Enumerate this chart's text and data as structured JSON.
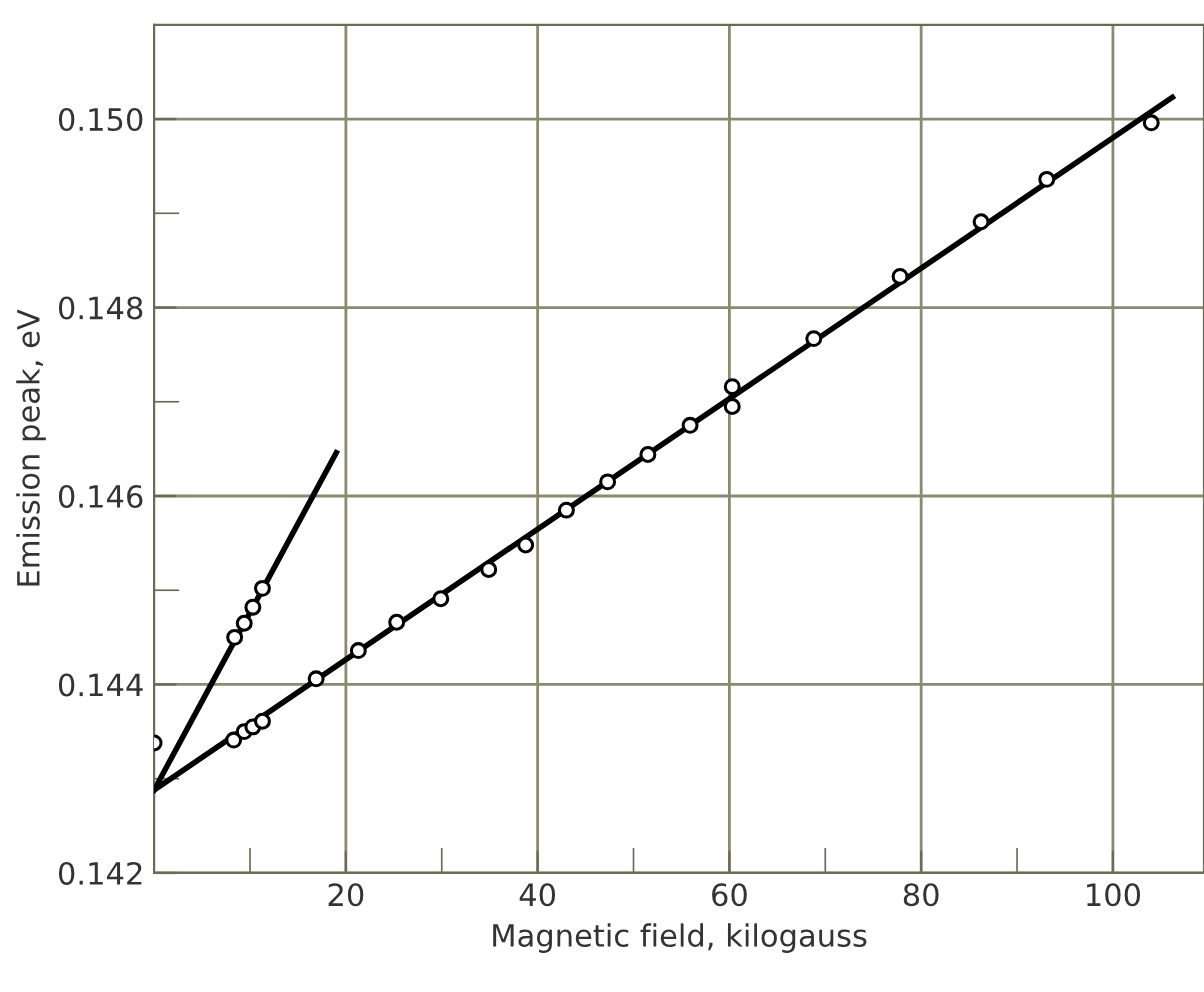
{
  "chart_data": {
    "type": "scatter",
    "xlabel": "Magnetic field, kilogauss",
    "ylabel": "Emission peak, eV",
    "xlim": [
      0,
      109.5
    ],
    "ylim": [
      0.142,
      0.151
    ],
    "xticks": [
      {
        "value": 10,
        "label": null
      },
      20,
      {
        "value": 30,
        "label": null
      },
      40,
      {
        "value": 50,
        "label": null
      },
      60,
      {
        "value": 70,
        "label": null
      },
      80,
      {
        "value": 90,
        "label": null
      },
      100
    ],
    "yticks": [
      {
        "value": 0.142,
        "label": "0.142"
      },
      {
        "value": 0.143,
        "label": null
      },
      {
        "value": 0.144,
        "label": "0.144"
      },
      {
        "value": 0.145,
        "label": null
      },
      {
        "value": 0.146,
        "label": "0.146"
      },
      {
        "value": 0.147,
        "label": null
      },
      {
        "value": 0.148,
        "label": "0.148"
      },
      {
        "value": 0.149,
        "label": null
      },
      {
        "value": 0.15,
        "label": "0.150"
      }
    ],
    "grid": true,
    "legend": false,
    "series": [
      {
        "marker": "circle",
        "color": "#000000",
        "x": [
          0,
          8.3,
          9.4,
          10.3,
          11.3,
          16.9,
          21.3,
          25.3,
          29.9,
          34.9,
          38.75,
          43.0,
          47.3,
          51.5,
          55.9,
          60.3,
          60.3,
          68.8,
          77.8,
          86.25,
          93.1,
          104.0
        ],
        "values": [
          0.14338,
          0.14341,
          0.1435,
          0.14355,
          0.14361,
          0.14406,
          0.14436,
          0.14466,
          0.14491,
          0.14522,
          0.14548,
          0.14585,
          0.14615,
          0.14644,
          0.14675,
          0.14716,
          0.14695,
          0.14767,
          0.14833,
          0.14891,
          0.14936,
          0.14996
        ]
      },
      {
        "marker": "circle",
        "color": "#000000",
        "x": [
          8.4,
          9.4,
          10.3,
          11.3
        ],
        "values": [
          0.1445,
          0.14465,
          0.14482,
          0.14502
        ]
      },
      {
        "type": "line",
        "marker": "none",
        "line_style": "solid",
        "color": "#000000",
        "x": [
          0,
          19.0
        ],
        "values": [
          0.14288,
          0.14646
        ]
      },
      {
        "type": "line",
        "marker": "none",
        "line_style": "solid",
        "color": "#000000",
        "x": [
          0,
          106.2
        ],
        "values": [
          0.14288,
          0.15023
        ]
      }
    ]
  }
}
